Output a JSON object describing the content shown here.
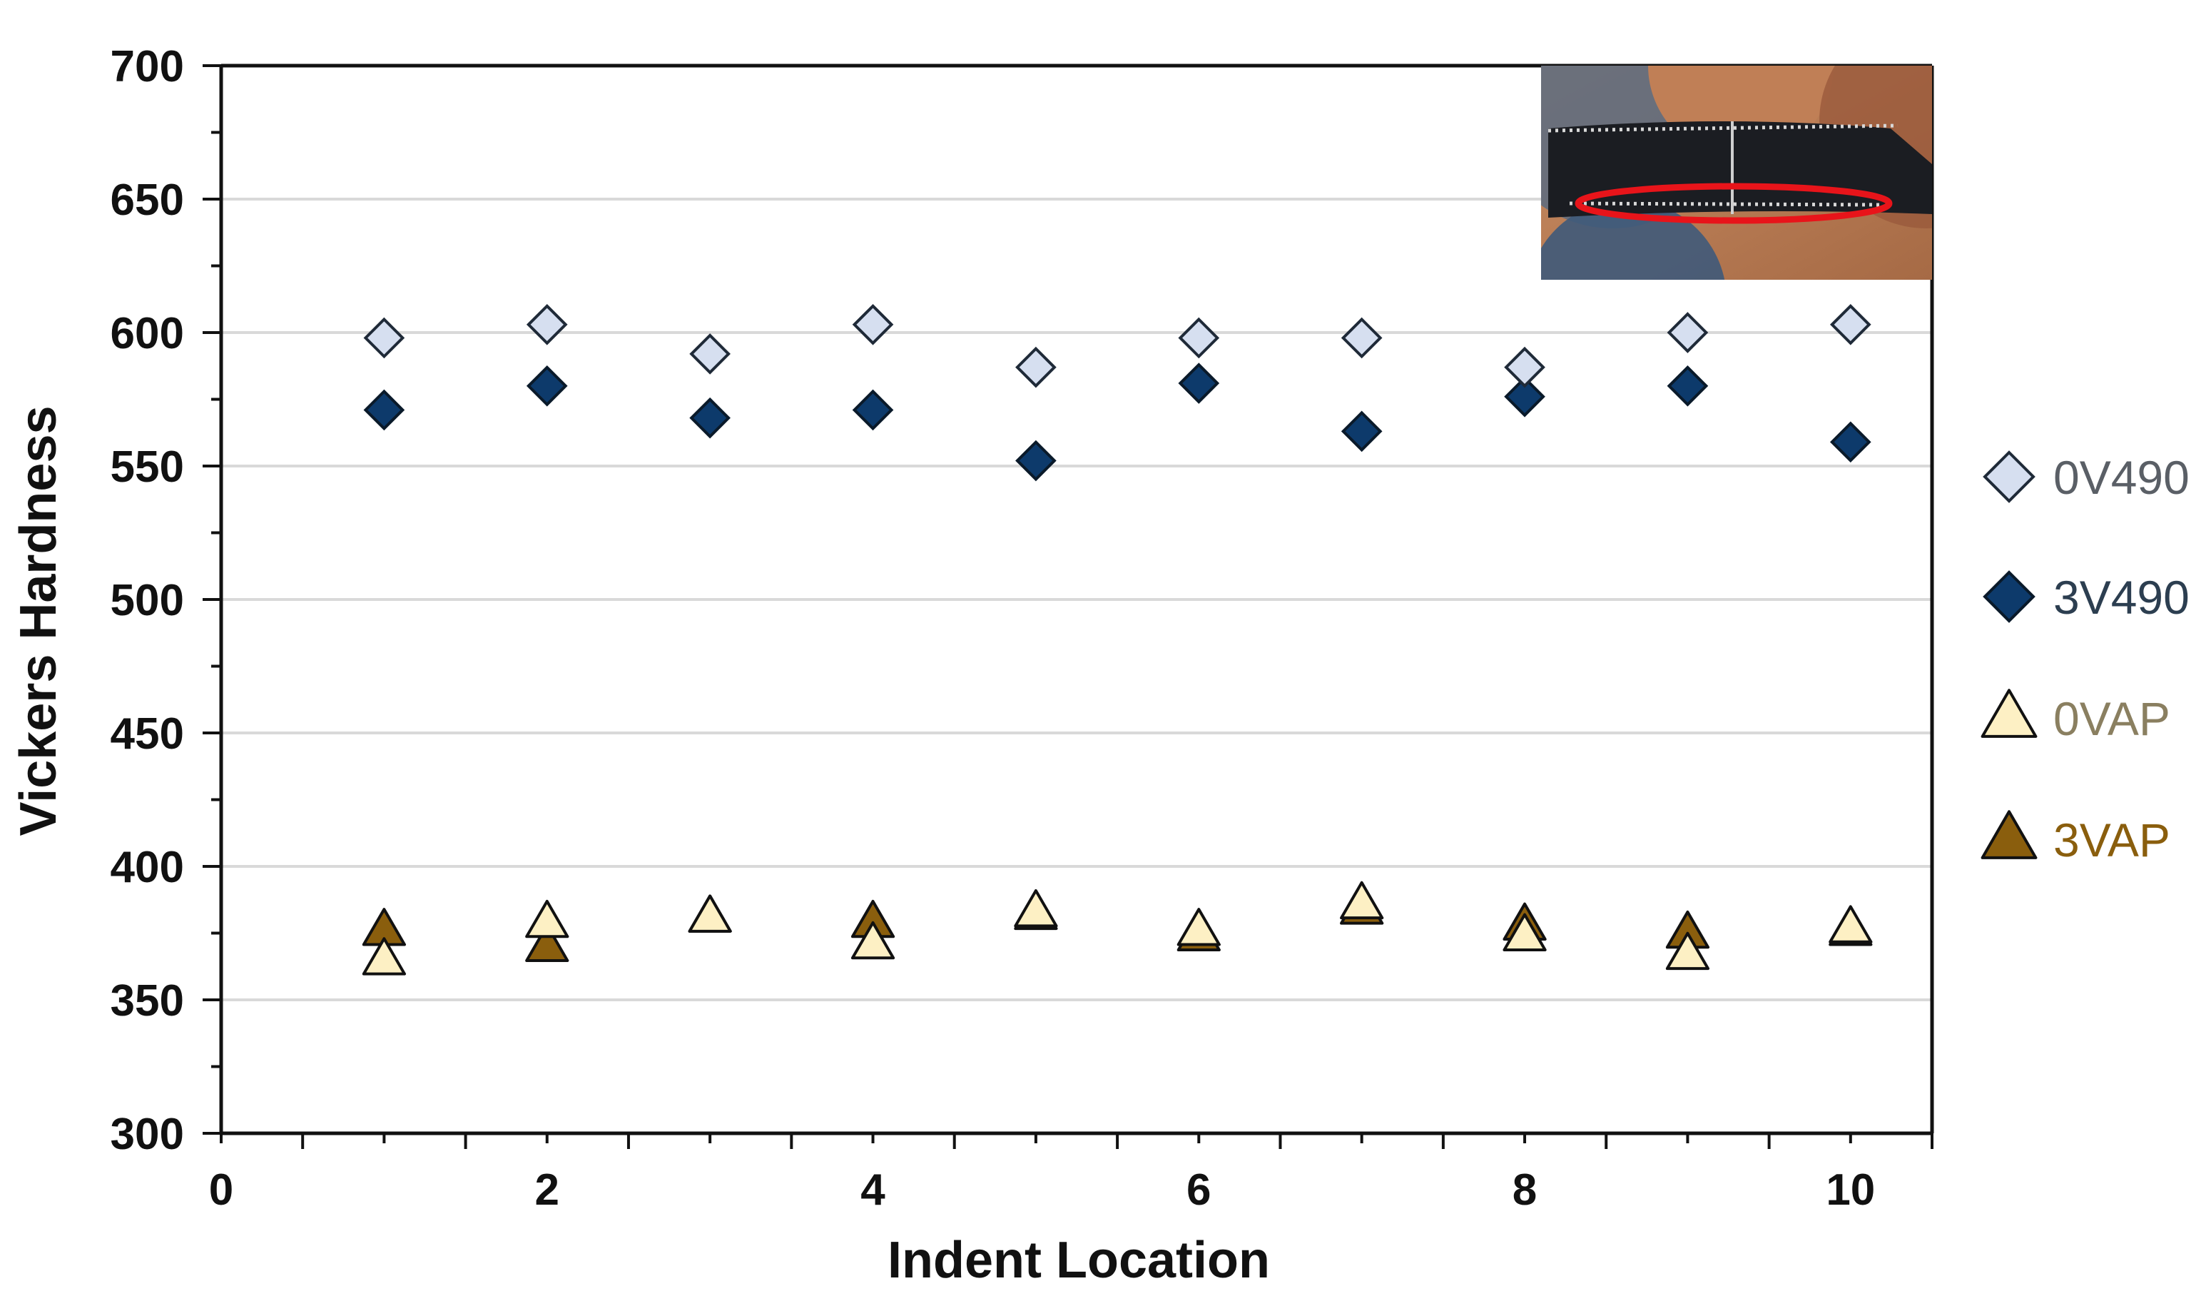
{
  "chart_data": {
    "type": "scatter",
    "title": "",
    "xlabel": "Indent Location",
    "ylabel": "Vickers Hardness",
    "xlim": [
      0,
      10.5
    ],
    "ylim": [
      300,
      700
    ],
    "x_ticks": [
      0,
      2,
      4,
      6,
      8,
      10
    ],
    "y_ticks": [
      300,
      350,
      400,
      450,
      500,
      550,
      600,
      650,
      700
    ],
    "grid": "horizontal",
    "legend_position": "right",
    "x": [
      1,
      2,
      3,
      4,
      5,
      6,
      7,
      8,
      9,
      10
    ],
    "series": [
      {
        "name": "0V490",
        "marker": "diamond",
        "fill": "#d6dff0",
        "stroke": "#1f2a38",
        "label_color": "#5a5f66",
        "values": [
          598,
          603,
          592,
          603,
          587,
          598,
          598,
          587,
          600,
          603
        ]
      },
      {
        "name": "3V490",
        "marker": "diamond",
        "fill": "#0d3a6b",
        "stroke": "#0a1a2a",
        "label_color": "#2c3e50",
        "values": [
          571,
          580,
          568,
          571,
          552,
          581,
          563,
          576,
          580,
          559
        ]
      },
      {
        "name": "0VAP",
        "marker": "triangle",
        "fill": "#fdf0c4",
        "stroke": "#111111",
        "label_color": "#8a7f60",
        "values": [
          365,
          379,
          381,
          371,
          383,
          376,
          386,
          374,
          367,
          377
        ]
      },
      {
        "name": "3VAP",
        "marker": "triangle",
        "fill": "#8a5e0d",
        "stroke": "#111111",
        "label_color": "#8a5e0d",
        "values": [
          376,
          370,
          381,
          379,
          382,
          374,
          384,
          378,
          375,
          376
        ]
      }
    ]
  },
  "inset": {
    "kind": "micrograph-photo",
    "highlight_color": "#e8141a"
  }
}
